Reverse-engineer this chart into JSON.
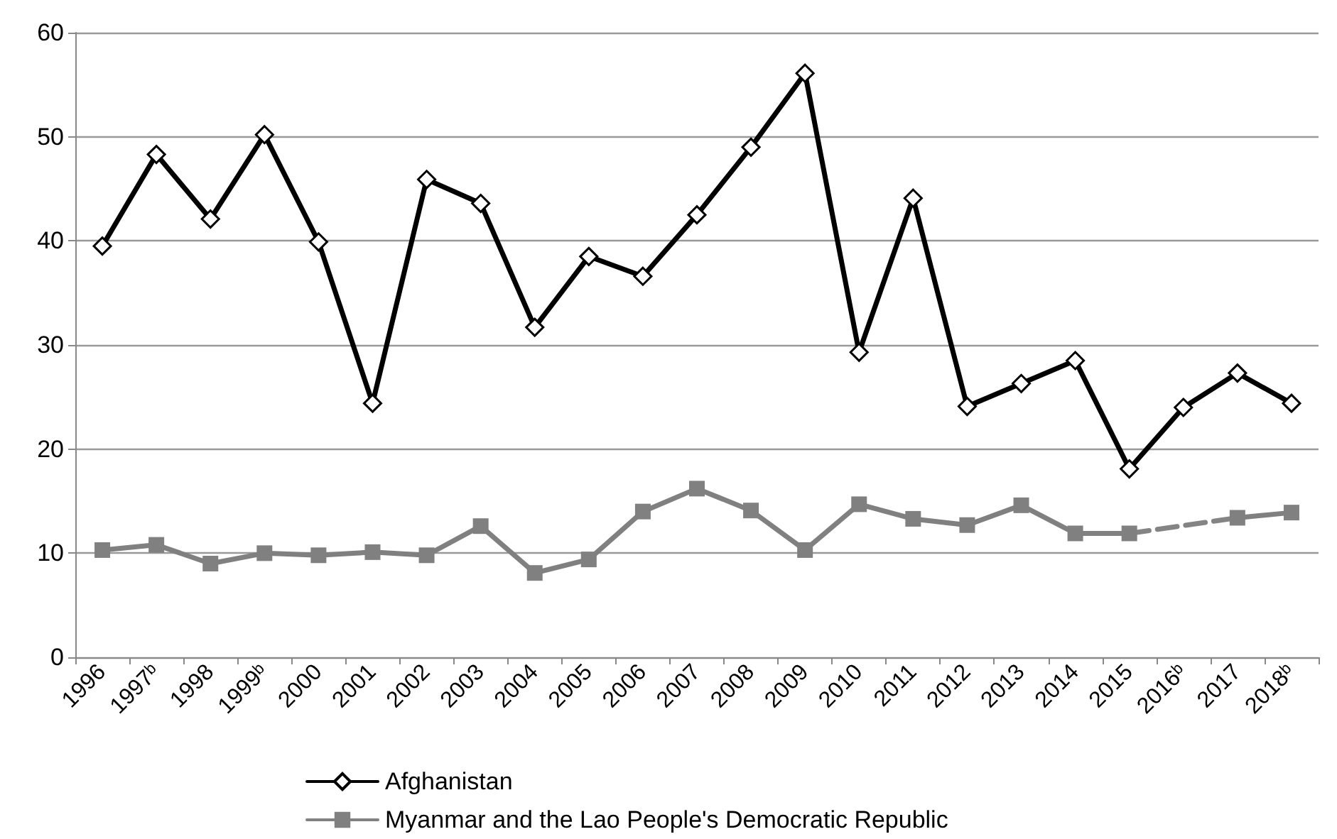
{
  "chart_data": {
    "type": "line",
    "categories": [
      "1996",
      "1997ᵇ",
      "1998",
      "1999ᵇ",
      "2000",
      "2001",
      "2002",
      "2003",
      "2004",
      "2005",
      "2006",
      "2007",
      "2008",
      "2009",
      "2010",
      "2011",
      "2012",
      "2013",
      "2014",
      "2015",
      "2016ᵇ",
      "2017",
      "2018ᵇ"
    ],
    "series": [
      {
        "name": "Afghanistan",
        "color": "#000000",
        "marker": "diamond",
        "line_style": "solid",
        "values": [
          39.5,
          48.3,
          42.1,
          50.2,
          39.9,
          24.4,
          45.9,
          43.6,
          31.7,
          38.5,
          36.6,
          42.5,
          49.0,
          56.1,
          29.3,
          44.1,
          24.1,
          26.3,
          28.5,
          18.1,
          24.0,
          27.3,
          24.4
        ]
      },
      {
        "name": "Myanmar and the Lao People's Democratic Republic",
        "color": "#808080",
        "marker": "square",
        "line_style": "solid",
        "values": [
          10.3,
          10.8,
          9.0,
          10.0,
          9.8,
          10.1,
          9.8,
          12.6,
          8.1,
          9.4,
          14.0,
          16.2,
          14.1,
          10.3,
          14.7,
          13.3,
          12.7,
          14.6,
          11.9,
          11.9,
          null,
          13.4,
          13.9
        ]
      },
      {
        "color": "#848484",
        "line_style": "dashed",
        "values": [
          null,
          null,
          null,
          null,
          null,
          null,
          null,
          null,
          null,
          null,
          null,
          null,
          null,
          null,
          null,
          null,
          null,
          null,
          null,
          11.9,
          null,
          13.4,
          null
        ]
      }
    ],
    "ylim": [
      0,
      60
    ],
    "yticks": [
      0,
      10,
      20,
      30,
      40,
      50,
      60
    ],
    "grid": "y",
    "legend": "bottom"
  }
}
